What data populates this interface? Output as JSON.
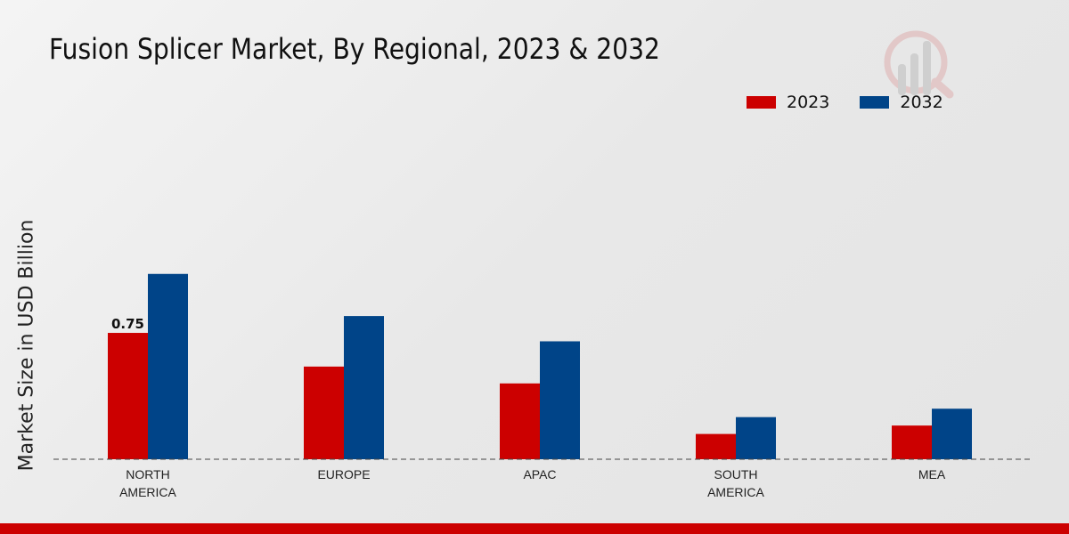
{
  "title": "Fusion Splicer Market, By Regional, 2023 & 2032",
  "chart_data": {
    "type": "bar",
    "title": "Fusion Splicer Market, By Regional, 2023 & 2032",
    "xlabel": "",
    "ylabel": "Market Size in USD Billion",
    "categories": [
      [
        "NORTH",
        "AMERICA"
      ],
      [
        "EUROPE"
      ],
      [
        "APAC"
      ],
      [
        "SOUTH",
        "AMERICA"
      ],
      [
        "MEA"
      ]
    ],
    "series": [
      {
        "name": "2023",
        "color": "#cc0000",
        "values": [
          0.75,
          0.55,
          0.45,
          0.15,
          0.2
        ]
      },
      {
        "name": "2032",
        "color": "#004488",
        "values": [
          1.1,
          0.85,
          0.7,
          0.25,
          0.3
        ]
      }
    ],
    "data_labels": [
      {
        "series": 0,
        "index": 0,
        "text": "0.75"
      }
    ],
    "ylim": [
      0,
      1.6
    ],
    "grid": false,
    "legend_position": "top-right"
  }
}
